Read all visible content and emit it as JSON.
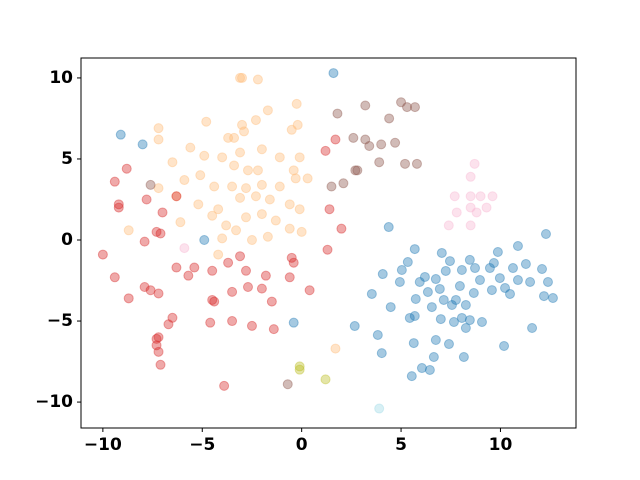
{
  "chart_data": {
    "type": "scatter",
    "xlim": [
      -11.1,
      13.8
    ],
    "ylim": [
      -11.6,
      11.23
    ],
    "xticks": [
      {
        "value": -10,
        "label": "−10"
      },
      {
        "value": -5,
        "label": "−5"
      },
      0,
      5,
      10
    ],
    "yticks": [
      {
        "value": -10,
        "label": "−10"
      },
      {
        "value": -5,
        "label": "−5"
      },
      0,
      5,
      10
    ],
    "alpha": 0.4,
    "series": [
      {
        "color": "#1f77b4",
        "x": [
          -9.1,
          -8.0,
          1.6,
          -4.9,
          -0.4,
          4.38,
          4.08,
          3.53,
          4.48,
          2.67,
          3.83,
          4.03,
          5.64,
          5.69,
          5.44,
          5.04,
          5.34,
          4.94,
          5.94,
          6.2,
          5.69,
          5.74,
          6.35,
          6.55,
          7.05,
          6.75,
          7.25,
          7.46,
          6.95,
          7.15,
          7.56,
          7.76,
          7.96,
          8.06,
          8.46,
          8.72,
          8.97,
          8.66,
          8.26,
          8.06,
          7.66,
          8.46,
          9.07,
          9.47,
          9.67,
          9.87,
          9.57,
          9.97,
          10.23,
          10.48,
          10.63,
          10.88,
          10.88,
          11.28,
          11.49,
          12.19,
          12.39,
          12.64,
          12.09,
          12.29,
          10.18,
          11.59,
          7.0,
          6.75,
          7.41,
          6.65,
          6.05,
          5.54,
          6.45,
          8.16,
          8.26
        ],
        "values": [
          6.5,
          5.9,
          10.3,
          0.0,
          -5.1,
          0.8,
          -2.1,
          -3.33,
          -4.14,
          -5.31,
          -5.86,
          -6.98,
          -6.36,
          -4.69,
          -4.81,
          -1.85,
          -1.36,
          -2.59,
          -2.59,
          -2.28,
          -0.56,
          -3.64,
          -3.21,
          -4.14,
          -0.8,
          -2.41,
          -1.91,
          -1.3,
          -3.02,
          -3.7,
          -4.01,
          -3.7,
          -2.84,
          -1.85,
          -1.23,
          -1.73,
          -2.47,
          -3.27,
          -4.01,
          -4.81,
          -5.06,
          -4.94,
          -5.06,
          -1.73,
          -1.42,
          -0.74,
          -3.09,
          -2.35,
          -2.96,
          -3.33,
          -1.73,
          -2.47,
          -0.37,
          -1.48,
          -2.59,
          -3.46,
          -2.59,
          -3.58,
          -1.79,
          0.37,
          -6.54,
          -5.43,
          -4.88,
          -6.17,
          -6.42,
          -7.22,
          -7.9,
          -8.4,
          -8.02,
          -7.22,
          -5.43
        ]
      },
      {
        "color": "#ffbb78",
        "x": [
          -3.1,
          -3.0,
          -2.2,
          -1.7,
          -0.25,
          -4.8,
          -7.2,
          -7.2,
          -3.7,
          -3.4,
          -3.0,
          -2.9,
          -2.3,
          -0.2,
          -0.5,
          -5.6,
          -6.5,
          -4.0,
          -3.1,
          -2.0,
          -1.1,
          -0.1,
          -3.4,
          -2.2,
          -0.4,
          -5.1,
          -5.9,
          -4.4,
          -3.5,
          -2.8,
          -2.0,
          -1.1,
          -0.3,
          0.3,
          -7.2,
          -6.3,
          -5.2,
          -4.2,
          -3.1,
          -2.3,
          -1.6,
          -0.6,
          -0.1,
          -6.1,
          -4.5,
          -3.8,
          -2.8,
          -2.0,
          -1.3,
          -0.6,
          0.0,
          -8.7,
          -4.0,
          -3.3,
          -2.5,
          -1.7,
          -4.2,
          1.7,
          -4.9,
          -2.7
        ],
        "values": [
          10.0,
          10.0,
          9.9,
          8.0,
          8.4,
          7.3,
          6.9,
          6.2,
          6.3,
          6.3,
          7.1,
          6.7,
          7.4,
          7.1,
          6.8,
          5.7,
          4.8,
          5.1,
          5.4,
          5.6,
          5.1,
          5.1,
          4.6,
          4.3,
          4.3,
          4.0,
          3.7,
          3.3,
          3.3,
          3.2,
          3.4,
          3.3,
          3.8,
          3.8,
          3.2,
          2.7,
          2.2,
          1.9,
          2.6,
          2.7,
          2.5,
          2.2,
          1.9,
          1.1,
          1.5,
          0.9,
          1.4,
          1.6,
          1.2,
          0.7,
          0.5,
          0.6,
          0.1,
          0.6,
          0.0,
          0.2,
          -0.9,
          -6.7,
          5.2,
          4.3
        ]
      },
      {
        "color": "#d62728",
        "x": [
          -8.8,
          -9.4,
          -9.2,
          -9.2,
          -7.8,
          -7.0,
          -6.3,
          -7.3,
          -7.1,
          -7.9,
          -10.0,
          -9.4,
          -8.7,
          -7.9,
          -7.6,
          -7.2,
          -6.3,
          -5.7,
          -6.5,
          -6.7,
          -7.3,
          -7.2,
          -7.3,
          -7.2,
          -7.1,
          -3.9,
          -4.5,
          -4.4,
          -4.6,
          -3.5,
          -2.5,
          -1.4,
          -1.5,
          -3.5,
          -2.7,
          -2.0,
          -5.4,
          -4.5,
          -3.7,
          -2.8,
          -1.8,
          -3.1,
          -0.5,
          -0.4,
          -0.6,
          0.4,
          1.2,
          1.7,
          1.4,
          2.0,
          1.3
        ],
        "values": [
          4.4,
          3.6,
          2.2,
          2.0,
          2.5,
          1.7,
          2.7,
          0.5,
          0.4,
          -0.1,
          -0.9,
          -2.3,
          -3.6,
          -2.9,
          -3.1,
          -3.3,
          -1.7,
          -2.2,
          -4.8,
          -5.2,
          -6.1,
          -6.0,
          -6.5,
          -6.9,
          -7.7,
          -9.0,
          -3.7,
          -3.8,
          -5.1,
          -5.0,
          -5.3,
          -5.5,
          -3.8,
          -3.2,
          -2.9,
          -3.0,
          -1.7,
          -1.9,
          -1.4,
          -1.9,
          -2.2,
          -1.0,
          -1.1,
          -1.4,
          -2.3,
          -3.1,
          5.5,
          6.2,
          1.9,
          0.7,
          -0.6
        ]
      },
      {
        "color": "#8c564b",
        "x": [
          1.8,
          3.2,
          5.0,
          5.3,
          5.7,
          4.4,
          2.6,
          3.2,
          3.4,
          4.0,
          4.7,
          2.7,
          2.8,
          3.9,
          5.2,
          5.8,
          2.1,
          1.5,
          -7.6,
          -0.7
        ],
        "values": [
          7.8,
          8.3,
          8.5,
          8.2,
          8.2,
          7.5,
          6.3,
          6.2,
          5.8,
          5.9,
          6.0,
          4.3,
          4.3,
          4.8,
          4.7,
          4.7,
          3.5,
          3.3,
          3.4,
          -8.9
        ]
      },
      {
        "color": "#f7b6d2",
        "x": [
          8.7,
          8.5,
          7.7,
          8.5,
          9.0,
          9.6,
          7.8,
          8.5,
          8.8,
          9.3,
          7.4,
          8.5,
          -5.9
        ],
        "values": [
          4.7,
          3.9,
          2.7,
          2.7,
          2.7,
          2.7,
          1.7,
          2.0,
          1.7,
          2.0,
          0.9,
          0.9,
          -0.5
        ]
      },
      {
        "color": "#bcbd22",
        "x": [
          -0.1,
          -0.1,
          1.2
        ],
        "values": [
          -7.8,
          -8.0,
          -8.6
        ]
      },
      {
        "color": "#9edae5",
        "x": [
          3.9
        ],
        "values": [
          -10.4
        ]
      }
    ]
  }
}
